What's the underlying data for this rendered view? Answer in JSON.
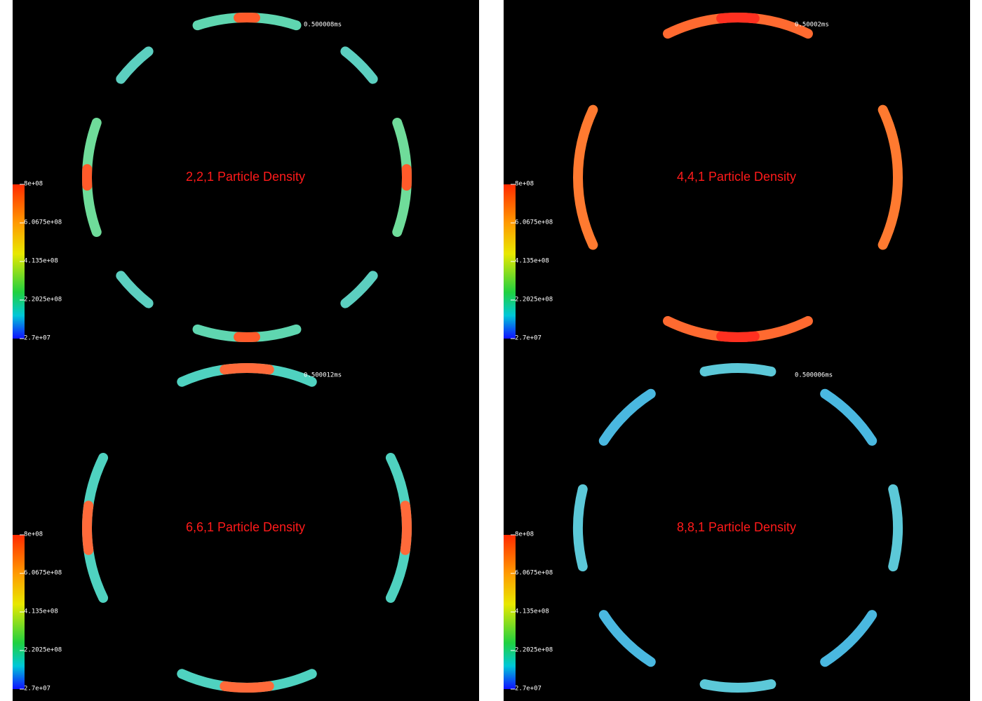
{
  "colorbar": {
    "ticks": [
      "8e+08",
      "6.0675e+08",
      "4.135e+08",
      "2.2025e+08",
      "2.7e+07"
    ]
  },
  "panels": [
    {
      "title": "2,2,1 Particle Density",
      "time": "0.500008ms"
    },
    {
      "title": "4,4,1 Particle Density",
      "time": "0.50002ms"
    },
    {
      "title": "6,6,1 Particle Density",
      "time": "0.500012ms"
    },
    {
      "title": "8,8,1 Particle Density",
      "time": "0.500006ms"
    }
  ]
}
